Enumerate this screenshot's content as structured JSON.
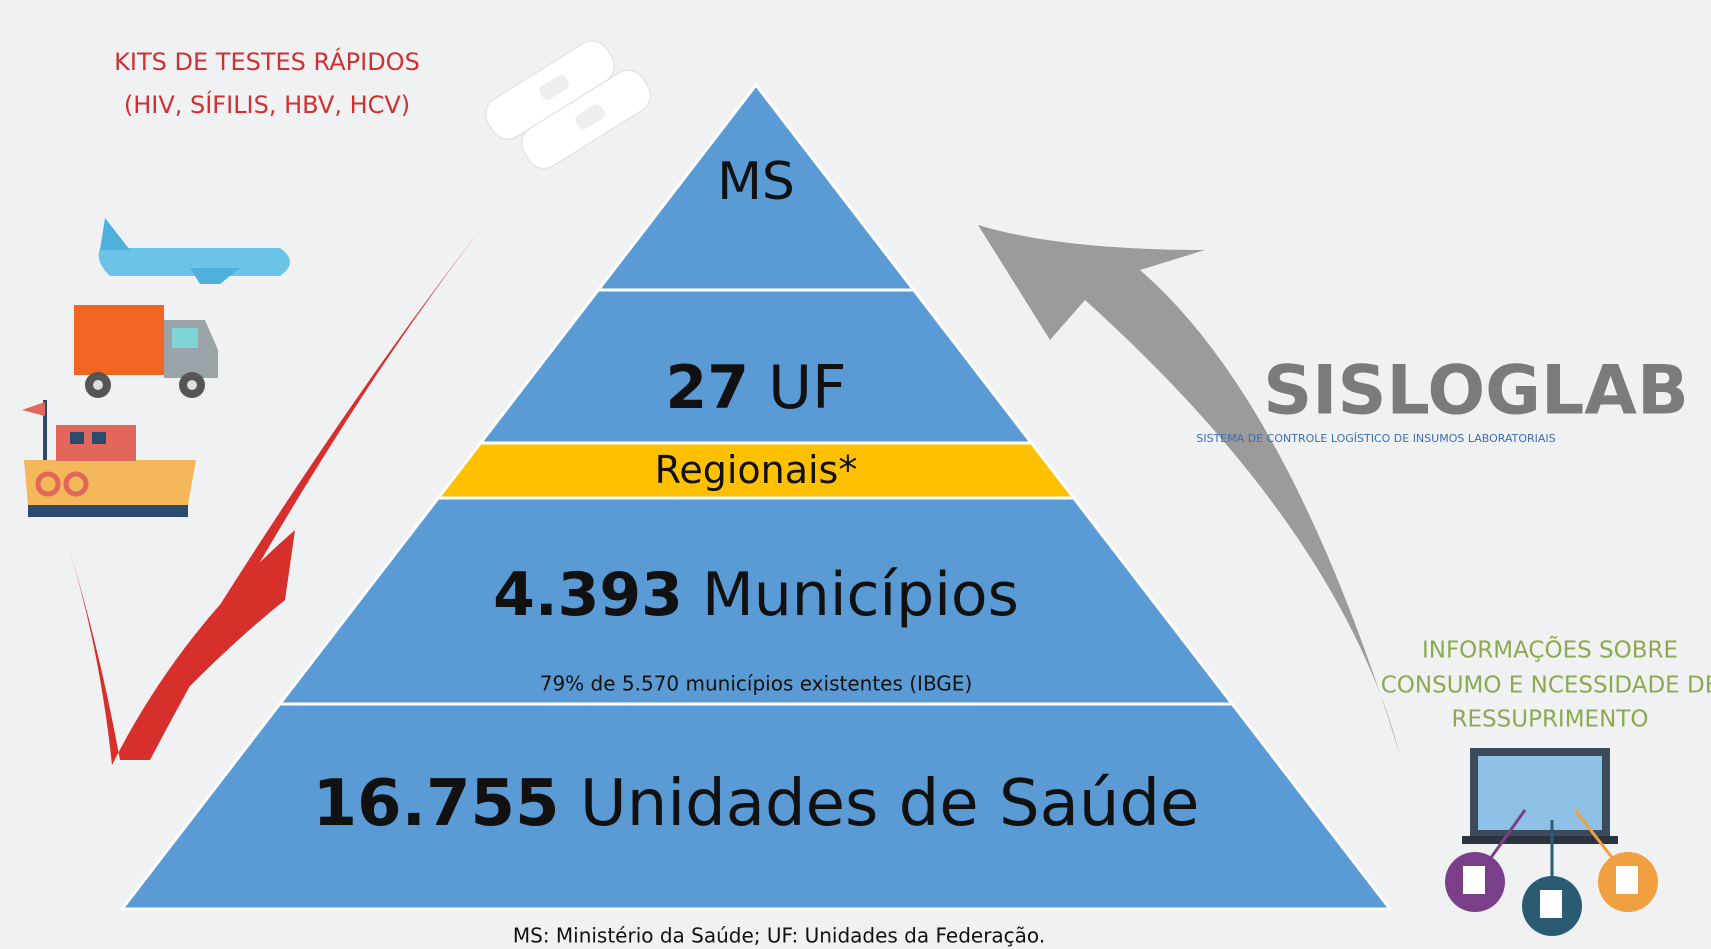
{
  "header": {
    "lines": [
      "KITS DE TESTES RÁPIDOS",
      "(HIV, SÍFILIS, HBV, HCV)"
    ]
  },
  "pyramid": {
    "levels": [
      {
        "bold": "",
        "text": "MS"
      },
      {
        "bold": "27",
        "text": "UF"
      },
      {
        "bold": "",
        "text": "Regionais*"
      },
      {
        "bold": "4.393",
        "text": "Municípios",
        "note": "79% de 5.570 municípios existentes (IBGE)"
      },
      {
        "bold": "16.755",
        "text": "Unidades de Saúde"
      }
    ]
  },
  "logo": {
    "name": "SISLOGLAB",
    "subtitle": "SISTEMA DE CONTROLE LOGÍSTICO DE INSUMOS LABORATORIAIS"
  },
  "info": {
    "lines": [
      "INFORMAÇÕES SOBRE",
      "CONSUMO E NCESSIDADE DE",
      "RESSUPRIMENTO"
    ]
  },
  "footnote": "MS: Ministério da Saúde; UF: Unidades da Federação."
}
